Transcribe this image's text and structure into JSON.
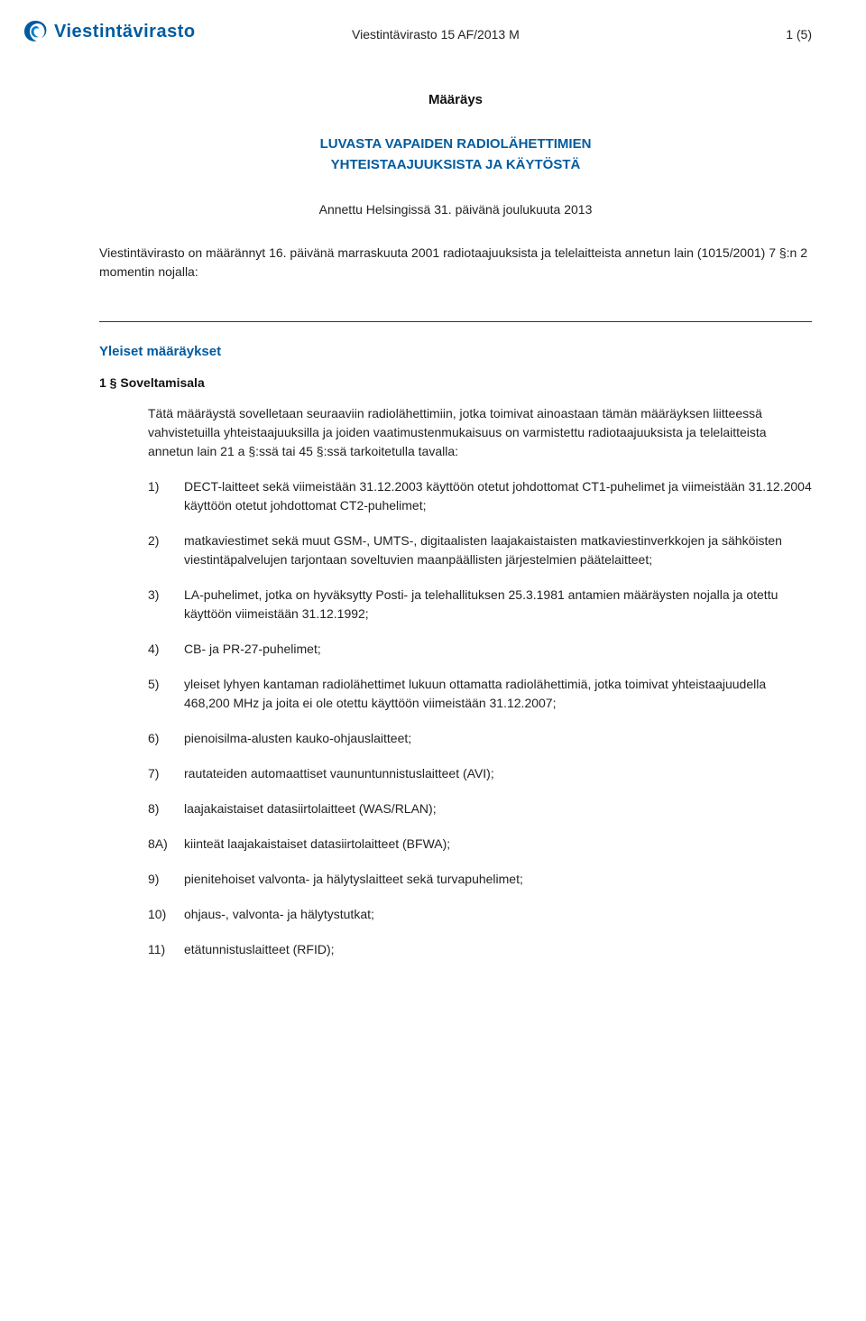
{
  "logo": {
    "text": "Viestintävirasto",
    "icon_name": "viestintavirasto-swirl",
    "brand_color": "#005b9f"
  },
  "header": {
    "doc_id": "Viestintävirasto 15 AF/2013 M",
    "page_info": "1 (5)"
  },
  "title": "Määräys",
  "main_heading_line1": "LUVASTA VAPAIDEN RADIOLÄHETTIMIEN",
  "main_heading_line2": "YHTEISTAAJUUKSISTA JA KÄYTÖSTÄ",
  "issued": "Annettu Helsingissä 31. päivänä joulukuuta 2013",
  "preamble": "Viestintävirasto on määrännyt 16. päivänä marraskuuta 2001 radiotaajuuksista ja telelaitteista annetun lain (1015/2001) 7 §:n 2 momentin nojalla:",
  "section_heading": "Yleiset määräykset",
  "sub_heading": "1 § Soveltamisala",
  "intro_paragraph": "Tätä määräystä sovelletaan seuraaviin radiolähettimiin, jotka toimivat ainoastaan tämän määräyksen liitteessä vahvistetuilla yhteistaajuuksilla ja joiden vaatimustenmukaisuus on varmistettu radiotaajuuksista ja telelaitteista annetun lain 21 a §:ssä tai 45 §:ssä tarkoitetulla tavalla:",
  "items": [
    {
      "n": "1)",
      "t": "DECT-laitteet sekä viimeistään 31.12.2003 käyttöön otetut johdottomat CT1-puhelimet ja viimeistään 31.12.2004 käyttöön otetut johdottomat CT2-puhelimet;"
    },
    {
      "n": "2)",
      "t": "matkaviestimet sekä muut GSM-, UMTS-, digitaalisten laajakaistaisten matkaviestinverkkojen ja sähköisten viestintäpalvelujen tarjontaan soveltuvien maanpäällisten järjestelmien päätelaitteet;"
    },
    {
      "n": "3)",
      "t": "LA-puhelimet, jotka on hyväksytty Posti- ja telehallituksen 25.3.1981 antamien määräysten nojalla ja otettu käyttöön viimeistään 31.12.1992;"
    },
    {
      "n": "4)",
      "t": "CB- ja PR-27-puhelimet;"
    },
    {
      "n": "5)",
      "t": "yleiset lyhyen kantaman radiolähettimet lukuun ottamatta radiolähettimiä, jotka toimivat yhteistaajuudella 468,200 MHz ja joita ei ole otettu käyttöön viimeistään 31.12.2007;"
    },
    {
      "n": "6)",
      "t": "pienoisilma-alusten kauko-ohjauslaitteet;"
    },
    {
      "n": "7)",
      "t": "rautateiden automaattiset vaununtunnistuslaitteet (AVI);"
    },
    {
      "n": "8)",
      "t": "laajakaistaiset datasiirtolaitteet (WAS/RLAN);"
    },
    {
      "n": "8A)",
      "t": "kiinteät laajakaistaiset datasiirtolaitteet (BFWA);"
    },
    {
      "n": "9)",
      "t": "pienitehoiset valvonta- ja hälytyslaitteet sekä turvapuhelimet;"
    },
    {
      "n": "10)",
      "t": "ohjaus-, valvonta- ja hälytystutkat;"
    },
    {
      "n": "11)",
      "t": "etätunnistuslaitteet (RFID);"
    }
  ],
  "colors": {
    "brand": "#005b9f",
    "text": "#222222",
    "rule": "#333333",
    "background": "#ffffff"
  },
  "typography": {
    "body_fontsize_pt": 11,
    "heading_fontsize_pt": 12,
    "font_family": "Verdana"
  }
}
